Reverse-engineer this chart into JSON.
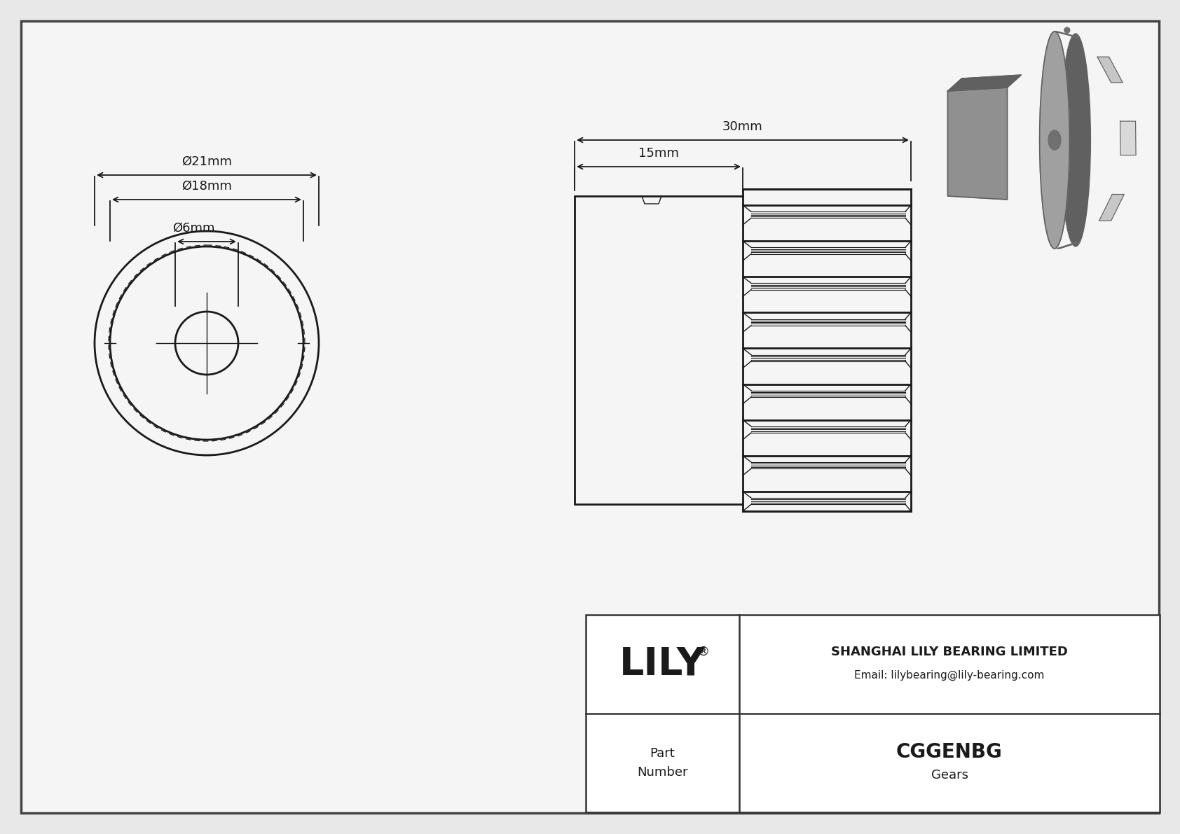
{
  "bg_color": "#e8e8e8",
  "drawing_bg": "#f5f5f5",
  "line_color": "#1a1a1a",
  "dim_color": "#1a1a1a",
  "company": "SHANGHAI LILY BEARING LIMITED",
  "email": "Email: lilybearing@lily-bearing.com",
  "part_number": "CGGENBG",
  "part_type": "Gears",
  "dim_21": "Ø21mm",
  "dim_18": "Ø18mm",
  "dim_6": "Ø6mm",
  "dim_30": "30mm",
  "dim_15": "15mm",
  "border_color": "#444444",
  "table_line_color": "#333333",
  "gear3d_body_color": "#909090",
  "gear3d_tooth_color": "#808080",
  "gear3d_face_color": "#a0a0a0",
  "gear3d_bore_color": "#707070",
  "gear3d_dark": "#606060",
  "gear3d_light": "#b0b0b0"
}
